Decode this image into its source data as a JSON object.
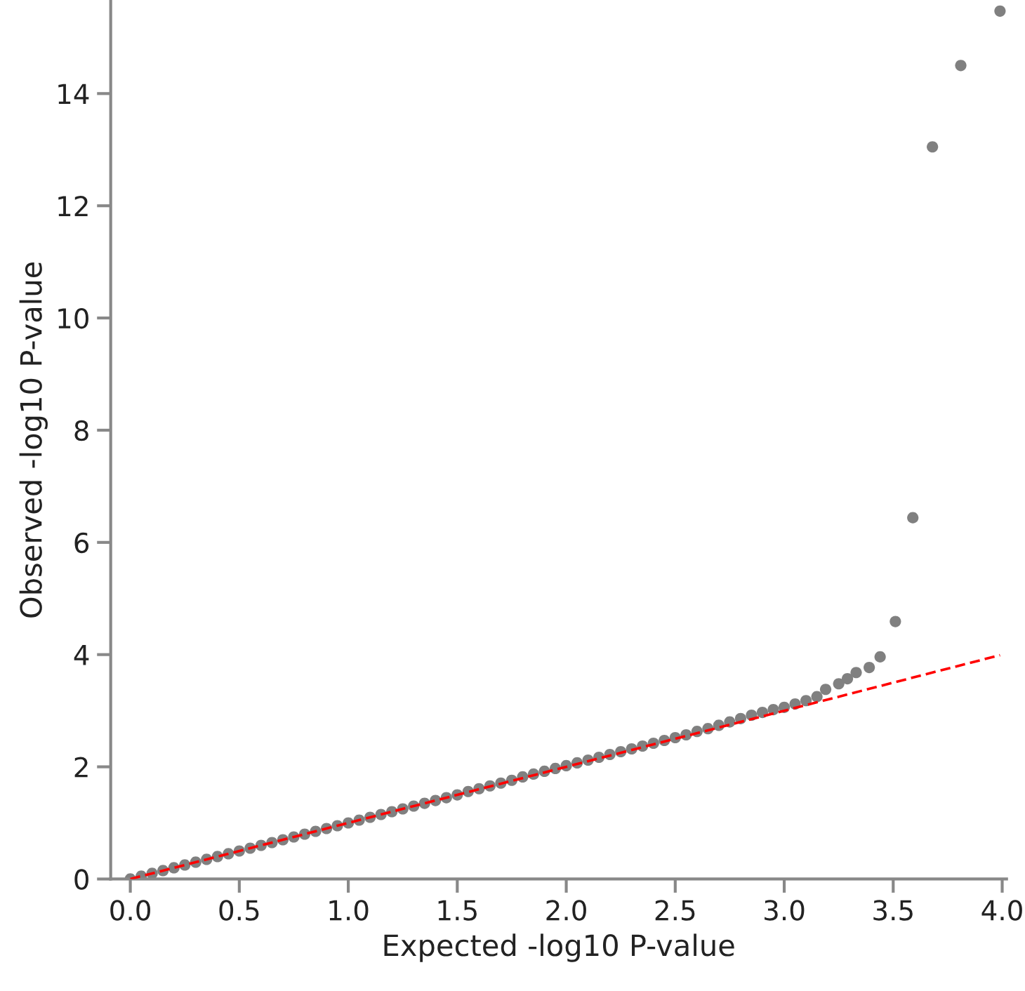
{
  "chart_data": {
    "type": "scatter",
    "xlabel": "Expected -log10 P-value",
    "ylabel": "Observed -log10 P-value",
    "xlim": [
      -0.09,
      4.02
    ],
    "ylim": [
      0,
      15.65
    ],
    "xticks": [
      {
        "value": 0,
        "label": "0.0"
      },
      {
        "value": 0.5,
        "label": "0.5"
      },
      {
        "value": 1,
        "label": "1.0"
      },
      {
        "value": 1.5,
        "label": "1.5"
      },
      {
        "value": 2,
        "label": "2.0"
      },
      {
        "value": 2.5,
        "label": "2.5"
      },
      {
        "value": 3,
        "label": "3.0"
      },
      {
        "value": 3.5,
        "label": "3.5"
      },
      {
        "value": 4,
        "label": "4.0"
      }
    ],
    "yticks": [
      0,
      2,
      4,
      6,
      8,
      10,
      12,
      14
    ],
    "grid": false,
    "series": [
      {
        "marker": "circle",
        "color": "#808080",
        "x": [
          0,
          0.05,
          0.1,
          0.15,
          0.2,
          0.25,
          0.3,
          0.35,
          0.4,
          0.45,
          0.5,
          0.55,
          0.6,
          0.65,
          0.7,
          0.75,
          0.8,
          0.85,
          0.9,
          0.95,
          1.0,
          1.05,
          1.1,
          1.15,
          1.2,
          1.25,
          1.3,
          1.35,
          1.4,
          1.45,
          1.5,
          1.55,
          1.6,
          1.65,
          1.7,
          1.75,
          1.8,
          1.85,
          1.9,
          1.95,
          2.0,
          2.05,
          2.1,
          2.15,
          2.2,
          2.25,
          2.3,
          2.35,
          2.4,
          2.45,
          2.5,
          2.55,
          2.6,
          2.65,
          2.7,
          2.75,
          2.8,
          2.85,
          2.9,
          2.95,
          3.0,
          3.05,
          3.1,
          3.15,
          3.19,
          3.25,
          3.29,
          3.33,
          3.39,
          3.44,
          3.51,
          3.59,
          3.68,
          3.81,
          3.99
        ],
        "values": [
          0,
          0.05,
          0.1,
          0.15,
          0.2,
          0.25,
          0.3,
          0.35,
          0.4,
          0.45,
          0.5,
          0.55,
          0.6,
          0.65,
          0.7,
          0.75,
          0.8,
          0.85,
          0.9,
          0.95,
          1.0,
          1.05,
          1.1,
          1.15,
          1.2,
          1.25,
          1.3,
          1.35,
          1.4,
          1.45,
          1.5,
          1.56,
          1.61,
          1.66,
          1.71,
          1.76,
          1.82,
          1.87,
          1.92,
          1.97,
          2.02,
          2.07,
          2.12,
          2.17,
          2.22,
          2.27,
          2.32,
          2.37,
          2.42,
          2.47,
          2.52,
          2.57,
          2.63,
          2.68,
          2.74,
          2.8,
          2.86,
          2.92,
          2.97,
          3.02,
          3.06,
          3.12,
          3.18,
          3.25,
          3.38,
          3.48,
          3.57,
          3.68,
          3.77,
          3.96,
          4.59,
          6.44,
          13.05,
          14.5,
          15.47
        ]
      },
      {
        "type": "line",
        "marker": "none",
        "color": "#ff0000",
        "line_style": "dashed",
        "x": [
          0,
          3.99
        ],
        "values": [
          0,
          3.99
        ]
      }
    ]
  }
}
